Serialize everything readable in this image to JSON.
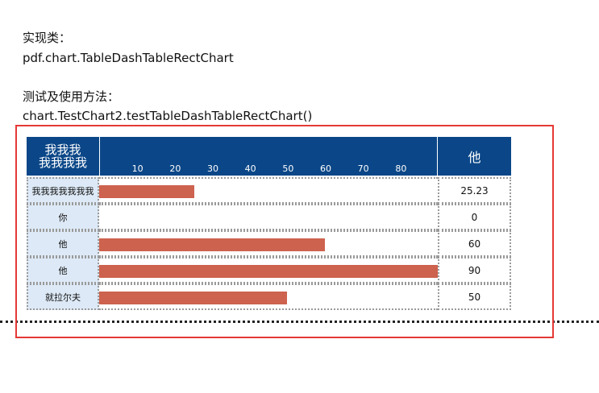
{
  "text": {
    "impl_label": "实现类：",
    "impl_class": "pdf.chart.TableDashTableRectChart",
    "test_label": "测试及使用方法：",
    "test_method": "chart.TestChart2.testTableDashTableRectChart()"
  },
  "colors": {
    "header_bg": "#0b4788",
    "bar": "#cd624e",
    "label_bg": "#dde9f6",
    "frame": "#e53935"
  },
  "chart_data": {
    "type": "table",
    "header": {
      "left_line1": "我我我",
      "left_line2": "我我我我",
      "right": "他"
    },
    "ticks": [
      10,
      20,
      30,
      40,
      50,
      60,
      70,
      80
    ],
    "xlim": [
      0,
      90
    ],
    "rows": [
      {
        "label": "我我我我我我我",
        "value": 25.23,
        "value_text": "25.23"
      },
      {
        "label": "你",
        "value": 0,
        "value_text": "0"
      },
      {
        "label": "他",
        "value": 60,
        "value_text": "60"
      },
      {
        "label": "他",
        "value": 90,
        "value_text": "90"
      },
      {
        "label": "就拉尔夫",
        "value": 50,
        "value_text": "50"
      }
    ]
  }
}
